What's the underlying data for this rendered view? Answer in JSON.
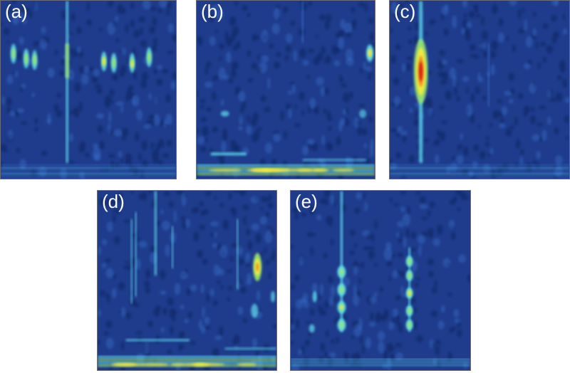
{
  "panels": [
    {
      "id": "a",
      "label": "(a)"
    },
    {
      "id": "b",
      "label": "(b)"
    },
    {
      "id": "c",
      "label": "(c)"
    },
    {
      "id": "d",
      "label": "(d)"
    },
    {
      "id": "e",
      "label": "(e)"
    }
  ],
  "colors": {
    "background": "#1f3c8c",
    "dark": "#142a6e",
    "mid": "#3a78d8",
    "cyan": "#5fe0f0",
    "green": "#9be86a",
    "yellow": "#f2ea3c",
    "orange": "#f08a24",
    "red": "#d01818"
  }
}
